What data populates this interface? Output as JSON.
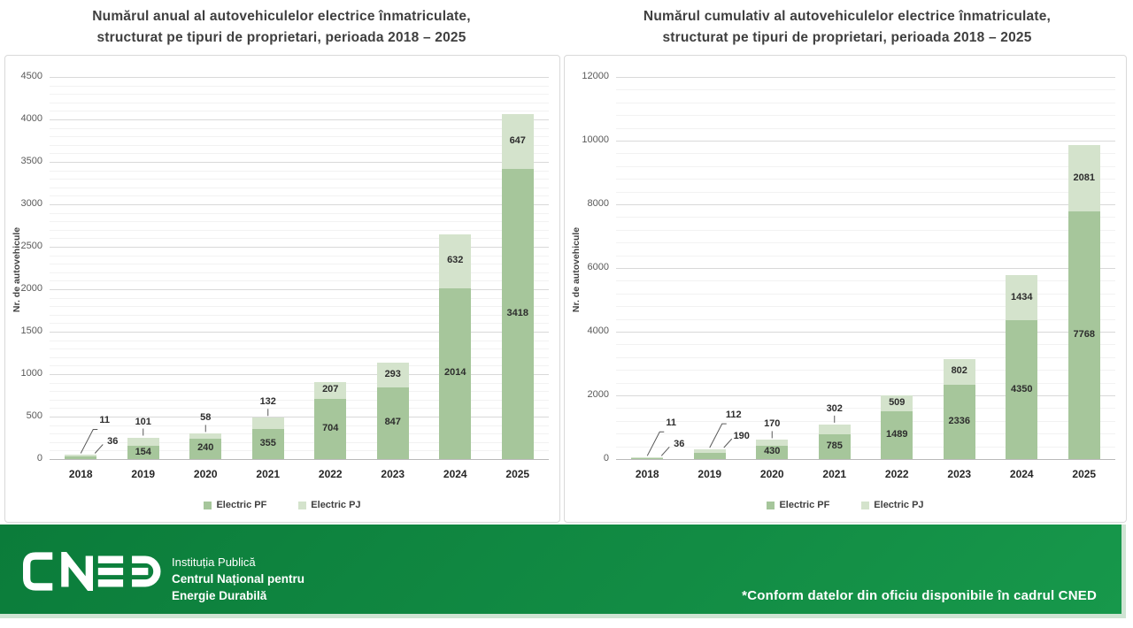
{
  "chart_data": [
    {
      "type": "bar",
      "stacked": true,
      "title": "Numărul anual al autovehiculelor electrice înmatriculate,\nstructurat pe tipuri de proprietari, perioada 2018 – 2025",
      "categories": [
        "2018",
        "2019",
        "2020",
        "2021",
        "2022",
        "2023",
        "2024",
        "2025"
      ],
      "series": [
        {
          "name": "Electric PF",
          "color": "#a6c69b",
          "values": [
            36,
            154,
            240,
            355,
            704,
            847,
            2014,
            3418
          ]
        },
        {
          "name": "Electric PJ",
          "color": "#d4e3cc",
          "values": [
            11,
            101,
            58,
            132,
            207,
            293,
            632,
            647
          ]
        }
      ],
      "xlabel": "",
      "ylabel": "Nr. de autovehicule",
      "ylim": [
        0,
        4500
      ],
      "ytick_step": 500,
      "grid": true,
      "legend_position": "bottom"
    },
    {
      "type": "bar",
      "stacked": true,
      "title": "Numărul cumulativ al autovehiculelor electrice înmatriculate,\nstructurat pe tipuri de proprietari, perioada 2018 – 2025",
      "categories": [
        "2018",
        "2019",
        "2020",
        "2021",
        "2022",
        "2023",
        "2024",
        "2025"
      ],
      "series": [
        {
          "name": "Electric PF",
          "color": "#a6c69b",
          "values": [
            36,
            190,
            430,
            785,
            1489,
            2336,
            4350,
            7768
          ]
        },
        {
          "name": "Electric PJ",
          "color": "#d4e3cc",
          "values": [
            11,
            112,
            170,
            302,
            509,
            802,
            1434,
            2081
          ]
        }
      ],
      "xlabel": "",
      "ylabel": "Nr. de autovehicule",
      "ylim": [
        0,
        12000
      ],
      "ytick_step": 2000,
      "grid": true,
      "legend_position": "bottom"
    }
  ],
  "footer": {
    "logo_text": "CNED",
    "org_line1": "Instituția Publică",
    "org_line2": "Centrul Național pentru",
    "org_line3": "Energie Durabilă",
    "note": "*Conform datelor din oficiu disponibile în cadrul CNED",
    "banner_color": "#128c44"
  },
  "colors": {
    "pf": "#a6c69b",
    "pj": "#d4e3cc",
    "grid_major": "#d9d9d9",
    "grid_minor": "#f2f2f2",
    "axis_text": "#595959",
    "title_text": "#3f3f3f"
  }
}
